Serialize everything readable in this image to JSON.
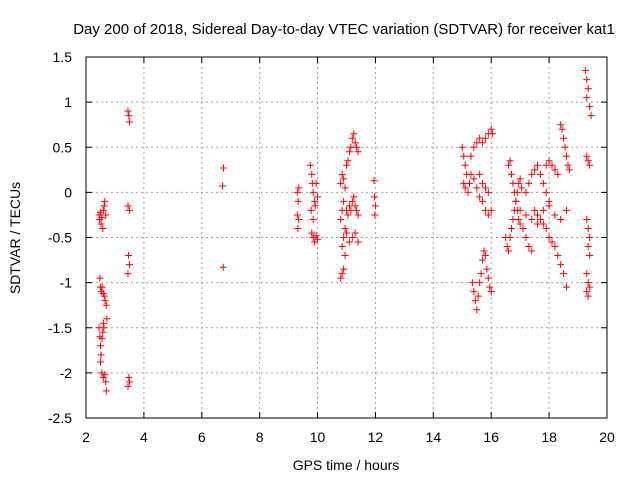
{
  "chart_data": {
    "type": "scatter",
    "title": "Day 200 of 2018, Sidereal Day-to-day VTEC variation (SDTVAR) for receiver kat1",
    "xlabel": "GPS time / hours",
    "ylabel": "SDTVAR / TECUs",
    "xlim": [
      2,
      20
    ],
    "ylim": [
      -2.5,
      1.5
    ],
    "xticks": [
      2,
      4,
      6,
      8,
      10,
      12,
      14,
      16,
      18,
      20
    ],
    "xtick_labels": [
      "2",
      "4",
      "6",
      "8",
      "10",
      "12",
      "14",
      "16",
      "18",
      "20"
    ],
    "yticks": [
      -2.5,
      -2,
      -1.5,
      -1,
      -0.5,
      0,
      0.5,
      1,
      1.5
    ],
    "ytick_labels": [
      "-2.5",
      "-2",
      "-1.5",
      "-1",
      "-0.5",
      "0",
      "0.5",
      "1",
      "1.5"
    ],
    "grid": true,
    "marker": "+",
    "color": "#ff0000",
    "series": [
      {
        "points": [
          [
            2.45,
            -0.25
          ],
          [
            2.47,
            -0.3
          ],
          [
            2.5,
            -0.22
          ],
          [
            2.52,
            -0.35
          ],
          [
            2.55,
            -0.28
          ],
          [
            2.58,
            -0.4
          ],
          [
            2.6,
            -0.2
          ],
          [
            2.63,
            -0.15
          ],
          [
            2.65,
            -0.1
          ],
          [
            2.68,
            -0.25
          ],
          [
            2.48,
            -0.95
          ],
          [
            2.5,
            -1.05
          ],
          [
            2.53,
            -1.1
          ],
          [
            2.56,
            -1.05
          ],
          [
            2.6,
            -1.12
          ],
          [
            2.63,
            -1.15
          ],
          [
            2.66,
            -1.2
          ],
          [
            2.7,
            -1.25
          ],
          [
            2.72,
            -1.4
          ],
          [
            2.45,
            -1.5
          ],
          [
            2.48,
            -1.6
          ],
          [
            2.5,
            -1.7
          ],
          [
            2.52,
            -1.8
          ],
          [
            2.55,
            -1.62
          ],
          [
            2.58,
            -1.55
          ],
          [
            2.6,
            -1.45
          ],
          [
            2.62,
            -1.5
          ],
          [
            2.5,
            -1.88
          ],
          [
            2.55,
            -2.0
          ],
          [
            2.6,
            -2.05
          ],
          [
            2.65,
            -2.02
          ],
          [
            2.68,
            -2.1
          ],
          [
            2.7,
            -2.2
          ],
          [
            3.45,
            0.9
          ],
          [
            3.48,
            0.85
          ],
          [
            3.5,
            0.78
          ],
          [
            3.45,
            -0.15
          ],
          [
            3.5,
            -0.2
          ],
          [
            3.47,
            -0.7
          ],
          [
            3.5,
            -0.8
          ],
          [
            3.45,
            -0.9
          ],
          [
            3.48,
            -2.05
          ],
          [
            3.5,
            -2.1
          ],
          [
            3.45,
            -2.15
          ],
          [
            6.75,
            0.27
          ],
          [
            6.72,
            0.07
          ],
          [
            6.74,
            -0.83
          ],
          [
            9.3,
            0.0
          ],
          [
            9.35,
            0.05
          ],
          [
            9.33,
            -0.1
          ],
          [
            9.3,
            -0.25
          ],
          [
            9.35,
            -0.3
          ],
          [
            9.32,
            -0.4
          ],
          [
            9.75,
            0.3
          ],
          [
            9.8,
            0.2
          ],
          [
            9.82,
            0.1
          ],
          [
            9.85,
            0.0
          ],
          [
            9.9,
            -0.1
          ],
          [
            9.78,
            -0.2
          ],
          [
            9.85,
            -0.3
          ],
          [
            9.92,
            -0.15
          ],
          [
            9.95,
            0.1
          ],
          [
            10.0,
            -0.05
          ],
          [
            9.8,
            -0.45
          ],
          [
            9.85,
            -0.5
          ],
          [
            9.9,
            -0.55
          ],
          [
            9.95,
            -0.48
          ],
          [
            10.0,
            -0.52
          ],
          [
            10.8,
            -0.95
          ],
          [
            10.85,
            -0.9
          ],
          [
            10.9,
            -0.85
          ],
          [
            10.95,
            -0.7
          ],
          [
            10.85,
            -0.6
          ],
          [
            10.9,
            -0.5
          ],
          [
            10.95,
            -0.4
          ],
          [
            10.8,
            -0.3
          ],
          [
            10.85,
            -0.2
          ],
          [
            10.9,
            -0.1
          ],
          [
            10.8,
            0.1
          ],
          [
            10.85,
            0.2
          ],
          [
            10.9,
            0.15
          ],
          [
            10.95,
            0.05
          ],
          [
            11.0,
            0.3
          ],
          [
            11.05,
            0.35
          ],
          [
            11.1,
            0.45
          ],
          [
            11.15,
            0.5
          ],
          [
            11.2,
            0.6
          ],
          [
            11.25,
            0.65
          ],
          [
            11.3,
            0.55
          ],
          [
            11.35,
            0.5
          ],
          [
            11.4,
            0.45
          ],
          [
            11.0,
            -0.2
          ],
          [
            11.05,
            -0.25
          ],
          [
            11.1,
            -0.15
          ],
          [
            11.15,
            -0.2
          ],
          [
            11.2,
            -0.1
          ],
          [
            11.25,
            -0.05
          ],
          [
            11.3,
            -0.15
          ],
          [
            11.35,
            -0.2
          ],
          [
            11.4,
            -0.25
          ],
          [
            11.0,
            -0.45
          ],
          [
            11.1,
            -0.55
          ],
          [
            11.2,
            -0.5
          ],
          [
            11.3,
            -0.45
          ],
          [
            11.4,
            -0.55
          ],
          [
            11.95,
            0.13
          ],
          [
            11.97,
            -0.05
          ],
          [
            12.0,
            -0.15
          ],
          [
            11.98,
            -0.25
          ],
          [
            15.0,
            0.5
          ],
          [
            15.05,
            0.4
          ],
          [
            15.1,
            0.3
          ],
          [
            15.15,
            0.2
          ],
          [
            15.05,
            0.1
          ],
          [
            15.1,
            0.05
          ],
          [
            15.2,
            0.0
          ],
          [
            15.25,
            0.1
          ],
          [
            15.3,
            0.2
          ],
          [
            15.3,
            0.4
          ],
          [
            15.4,
            0.5
          ],
          [
            15.5,
            0.55
          ],
          [
            15.6,
            0.6
          ],
          [
            15.7,
            0.55
          ],
          [
            15.8,
            0.6
          ],
          [
            15.9,
            0.65
          ],
          [
            16.0,
            0.7
          ],
          [
            16.05,
            0.65
          ],
          [
            15.4,
            0.15
          ],
          [
            15.5,
            0.05
          ],
          [
            15.6,
            -0.05
          ],
          [
            15.7,
            -0.1
          ],
          [
            15.8,
            -0.2
          ],
          [
            15.9,
            -0.25
          ],
          [
            16.0,
            -0.2
          ],
          [
            15.6,
            0.2
          ],
          [
            15.7,
            0.1
          ],
          [
            15.8,
            0.05
          ],
          [
            15.9,
            0.0
          ],
          [
            15.35,
            -1.0
          ],
          [
            15.4,
            -1.1
          ],
          [
            15.45,
            -1.2
          ],
          [
            15.5,
            -1.3
          ],
          [
            15.55,
            -1.15
          ],
          [
            15.6,
            -1.0
          ],
          [
            15.65,
            -0.9
          ],
          [
            15.7,
            -0.75
          ],
          [
            15.75,
            -0.65
          ],
          [
            15.8,
            -0.7
          ],
          [
            15.85,
            -0.85
          ],
          [
            15.9,
            -0.95
          ],
          [
            15.95,
            -1.05
          ],
          [
            16.0,
            -1.1
          ],
          [
            16.5,
            -0.5
          ],
          [
            16.55,
            -0.6
          ],
          [
            16.6,
            -0.65
          ],
          [
            16.65,
            -0.5
          ],
          [
            16.7,
            -0.4
          ],
          [
            16.75,
            -0.3
          ],
          [
            16.8,
            -0.2
          ],
          [
            16.85,
            -0.1
          ],
          [
            16.9,
            0.0
          ],
          [
            16.95,
            0.1
          ],
          [
            17.0,
            0.15
          ],
          [
            17.05,
            0.05
          ],
          [
            16.6,
            0.3
          ],
          [
            16.65,
            0.35
          ],
          [
            16.7,
            0.2
          ],
          [
            16.75,
            0.1
          ],
          [
            16.8,
            0.0
          ],
          [
            16.85,
            -0.1
          ],
          [
            16.9,
            -0.2
          ],
          [
            16.95,
            -0.3
          ],
          [
            17.0,
            -0.35
          ],
          [
            17.1,
            -0.4
          ],
          [
            17.2,
            -0.5
          ],
          [
            17.3,
            -0.6
          ],
          [
            17.4,
            -0.65
          ],
          [
            17.2,
            0.0
          ],
          [
            17.3,
            0.1
          ],
          [
            17.4,
            0.2
          ],
          [
            17.5,
            0.25
          ],
          [
            17.6,
            0.3
          ],
          [
            17.7,
            0.2
          ],
          [
            17.8,
            0.1
          ],
          [
            17.9,
            0.0
          ],
          [
            18.0,
            -0.1
          ],
          [
            17.5,
            -0.2
          ],
          [
            17.6,
            -0.25
          ],
          [
            17.7,
            -0.3
          ],
          [
            17.8,
            -0.35
          ],
          [
            17.9,
            -0.4
          ],
          [
            18.0,
            -0.5
          ],
          [
            18.1,
            -0.55
          ],
          [
            18.2,
            -0.6
          ],
          [
            18.3,
            -0.7
          ],
          [
            18.4,
            -0.8
          ],
          [
            18.5,
            -0.9
          ],
          [
            18.6,
            -1.05
          ],
          [
            17.0,
            -0.2
          ],
          [
            17.2,
            -0.25
          ],
          [
            17.4,
            -0.3
          ],
          [
            17.6,
            -0.35
          ],
          [
            17.8,
            -0.2
          ],
          [
            18.0,
            -0.15
          ],
          [
            18.2,
            -0.25
          ],
          [
            18.4,
            -0.3
          ],
          [
            18.6,
            -0.2
          ],
          [
            17.9,
            0.3
          ],
          [
            18.0,
            0.35
          ],
          [
            18.1,
            0.3
          ],
          [
            18.2,
            0.25
          ],
          [
            18.3,
            0.2
          ],
          [
            18.4,
            0.75
          ],
          [
            18.45,
            0.7
          ],
          [
            18.5,
            0.6
          ],
          [
            18.55,
            0.5
          ],
          [
            18.6,
            0.4
          ],
          [
            18.65,
            0.3
          ],
          [
            18.7,
            0.25
          ],
          [
            19.25,
            1.35
          ],
          [
            19.3,
            1.25
          ],
          [
            19.35,
            1.15
          ],
          [
            19.3,
            1.05
          ],
          [
            19.4,
            0.95
          ],
          [
            19.45,
            0.85
          ],
          [
            19.3,
            0.4
          ],
          [
            19.35,
            0.35
          ],
          [
            19.4,
            0.3
          ],
          [
            19.3,
            -0.3
          ],
          [
            19.35,
            -0.4
          ],
          [
            19.4,
            -0.5
          ],
          [
            19.35,
            -0.6
          ],
          [
            19.4,
            -0.7
          ],
          [
            19.3,
            -0.9
          ],
          [
            19.35,
            -1.0
          ],
          [
            19.4,
            -1.05
          ],
          [
            19.3,
            -1.1
          ],
          [
            19.35,
            -1.15
          ]
        ]
      }
    ]
  }
}
